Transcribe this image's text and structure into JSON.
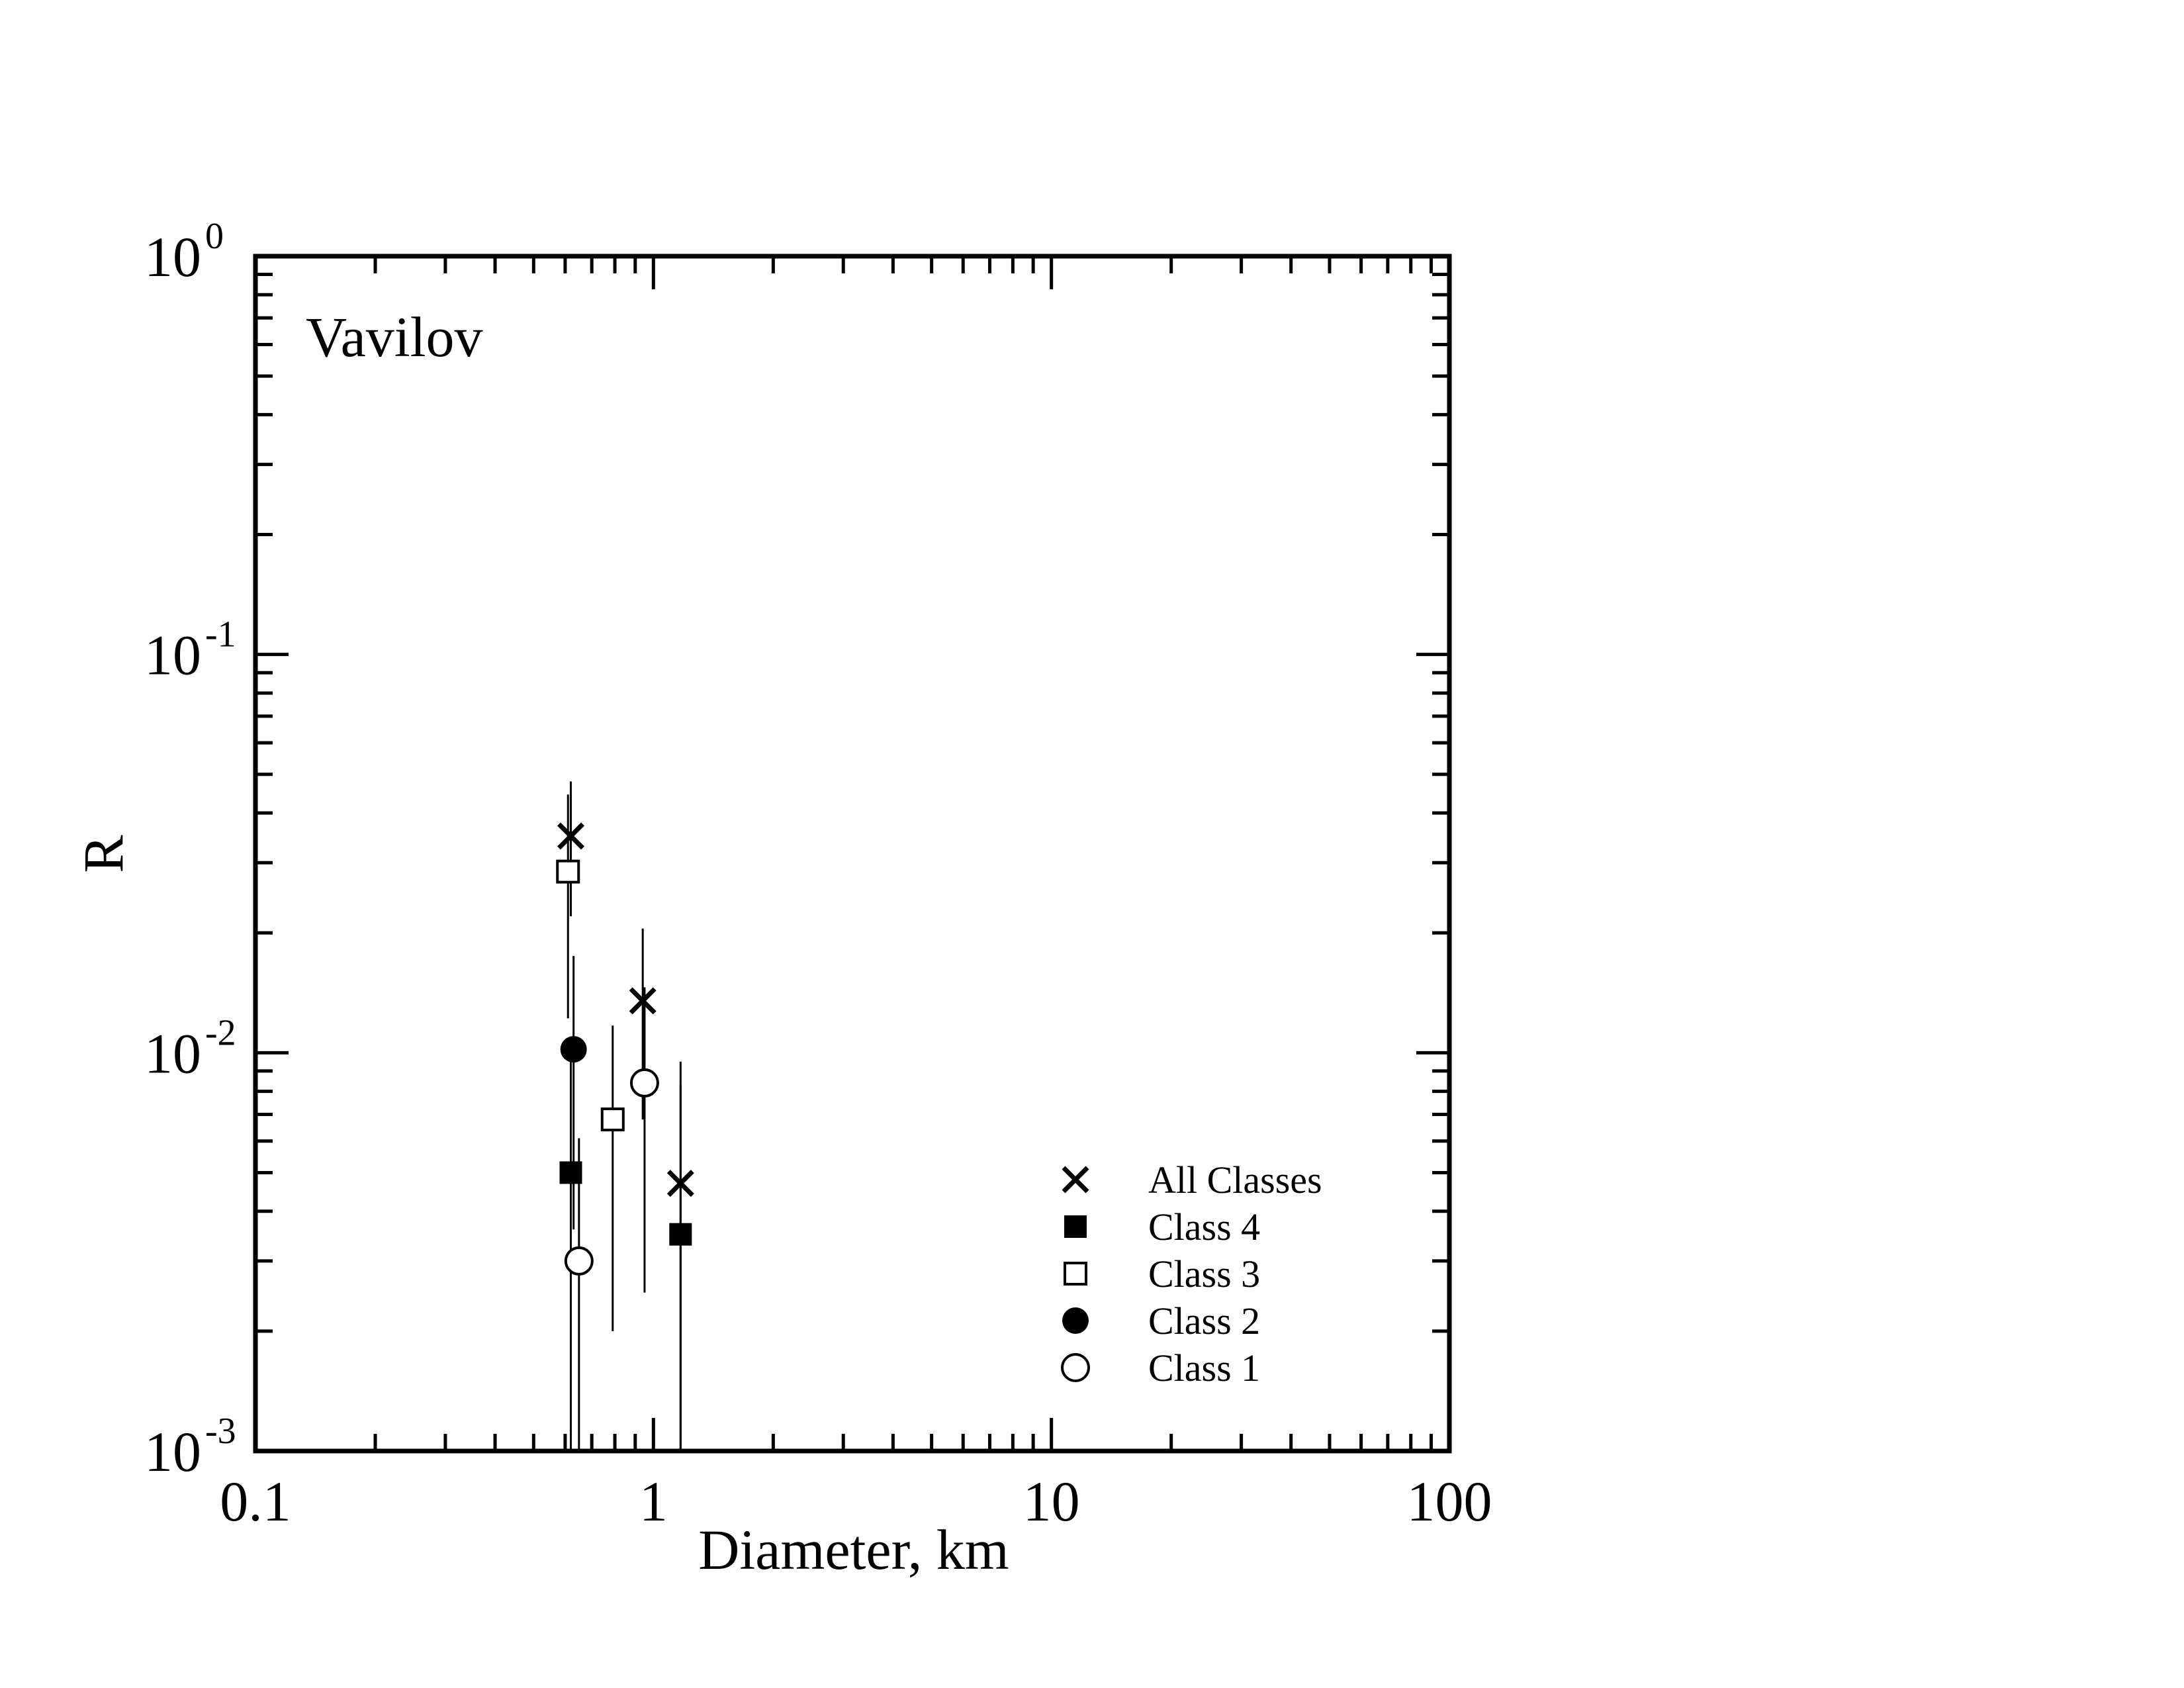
{
  "chart_data": {
    "type": "scatter",
    "annotation": "Vavilov",
    "xlabel": "Diameter, km",
    "ylabel": "R",
    "xscale": "log",
    "yscale": "log",
    "xlim": [
      0.1,
      100
    ],
    "ylim": [
      0.001,
      1
    ],
    "x_ticks": [
      {
        "value": 0.1,
        "label": "0.1"
      },
      {
        "value": 1,
        "label": "1"
      },
      {
        "value": 10,
        "label": "10"
      },
      {
        "value": 100,
        "label": "100"
      }
    ],
    "y_ticks": [
      {
        "value": 1,
        "base": "10",
        "exp": "0"
      },
      {
        "value": 0.1,
        "base": "10",
        "exp": "-1"
      },
      {
        "value": 0.01,
        "base": "10",
        "exp": "-2"
      },
      {
        "value": 0.001,
        "base": "10",
        "exp": "-3"
      }
    ],
    "legend_position": "bottom-right",
    "grid": false,
    "series": [
      {
        "name": "All Classes",
        "marker": "x",
        "points": [
          {
            "x": 0.62,
            "y": 0.035,
            "y_low": 0.022,
            "y_high": 0.048
          },
          {
            "x": 0.94,
            "y": 0.0135,
            "y_low": 0.0068,
            "y_high": 0.0205
          },
          {
            "x": 1.17,
            "y": 0.0047,
            "y_low": 0.001,
            "y_high": 0.0095
          }
        ]
      },
      {
        "name": "Class 4",
        "marker": "filled-square",
        "points": [
          {
            "x": 0.62,
            "y": 0.005,
            "y_low": 0.001,
            "y_high": 0.0102
          },
          {
            "x": 1.17,
            "y": 0.0035,
            "y_low": 0.001,
            "y_high": 0.0083
          }
        ]
      },
      {
        "name": "Class 3",
        "marker": "open-square",
        "points": [
          {
            "x": 0.61,
            "y": 0.0285,
            "y_low": 0.0122,
            "y_high": 0.0445
          },
          {
            "x": 0.79,
            "y": 0.0068,
            "y_low": 0.002,
            "y_high": 0.0117
          }
        ]
      },
      {
        "name": "Class 2",
        "marker": "filled-circle",
        "points": [
          {
            "x": 0.63,
            "y": 0.0102,
            "y_low": 0.0036,
            "y_high": 0.0175
          }
        ]
      },
      {
        "name": "Class 1",
        "marker": "open-circle",
        "points": [
          {
            "x": 0.65,
            "y": 0.003,
            "y_low": 0.001,
            "y_high": 0.0061
          },
          {
            "x": 0.95,
            "y": 0.0084,
            "y_low": 0.0025,
            "y_high": 0.0146
          }
        ]
      }
    ]
  }
}
